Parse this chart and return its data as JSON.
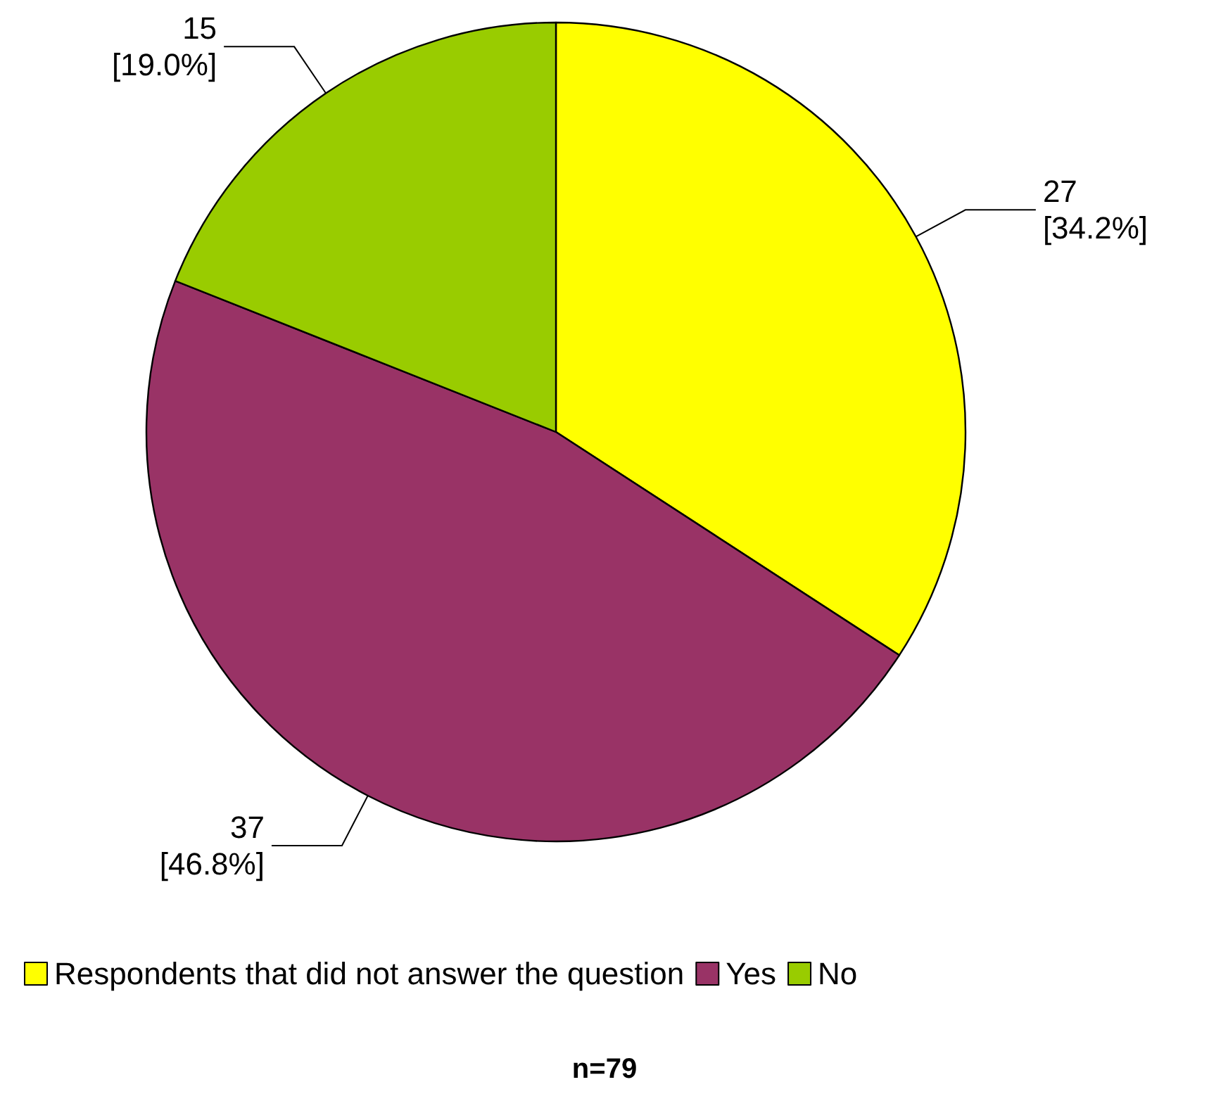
{
  "chart_data": {
    "type": "pie",
    "categories": [
      "Respondents that did not answer the question",
      "Yes",
      "No"
    ],
    "values": [
      27,
      37,
      15
    ],
    "colors": [
      "#ffff00",
      "#993366",
      "#99cc00"
    ],
    "value_labels": [
      "27\n[34.2%]",
      "37\n[46.8%]",
      "15\n[19.0%]"
    ],
    "legend": "bottom",
    "annotations": [
      "n=79"
    ]
  }
}
